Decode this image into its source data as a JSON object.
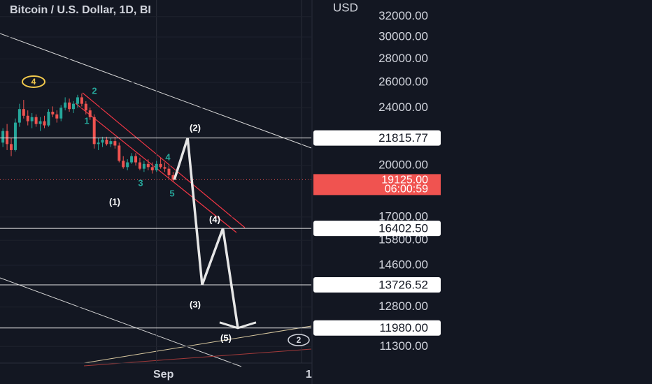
{
  "chart_data": {
    "type": "candlestick",
    "title": "Bitcoin / U.S. Dollar, 1D, BI",
    "y_unit": "USD",
    "log_scale": true,
    "grid": true,
    "ylim": [
      10725,
      33714
    ],
    "yticks": [
      {
        "value": 32000,
        "label": "32000.00"
      },
      {
        "value": 30000,
        "label": "30000.00"
      },
      {
        "value": 28000,
        "label": "28000.00"
      },
      {
        "value": 26000,
        "label": "26000.00"
      },
      {
        "value": 24000,
        "label": "24000.00"
      },
      {
        "value": 20000,
        "label": "20000.00"
      },
      {
        "value": 17000,
        "label": "17000.00"
      },
      {
        "value": 15800,
        "label": "15800.00"
      },
      {
        "value": 14600,
        "label": "14600.00"
      },
      {
        "value": 12800,
        "label": "12800.00"
      },
      {
        "value": 11300,
        "label": "11300.00"
      }
    ],
    "xlim": [
      -0.7,
      74.3
    ],
    "xticks": [
      {
        "value": 37,
        "label": "Sep"
      },
      {
        "value": 72,
        "label": "1"
      }
    ],
    "up_color": "#26a69a",
    "down_color": "#ef5350",
    "x": [
      0,
      1,
      2,
      3,
      4,
      5,
      6,
      7,
      8,
      9,
      10,
      11,
      12,
      13,
      14,
      15,
      16,
      17,
      18,
      19,
      20,
      21,
      22,
      23,
      24,
      25,
      26,
      27,
      28,
      29,
      30,
      31,
      32,
      33,
      34,
      35,
      36,
      37,
      38,
      39,
      40,
      41
    ],
    "open": [
      21500,
      22300,
      21400,
      21000,
      22900,
      23900,
      23400,
      23000,
      23300,
      22800,
      23000,
      22700,
      23700,
      23500,
      23200,
      24000,
      24400,
      23900,
      24300,
      24800,
      24300,
      23800,
      23300,
      21400,
      21500,
      21700,
      21400,
      21600,
      21300,
      20300,
      19900,
      20200,
      20600,
      20200,
      19800,
      20100,
      19900,
      19700,
      20100,
      19900,
      19800,
      19400
    ],
    "high": [
      22500,
      22800,
      21800,
      23200,
      24300,
      24600,
      23800,
      23600,
      23500,
      23300,
      23400,
      23900,
      24100,
      23800,
      24200,
      24800,
      24700,
      24500,
      25000,
      25100,
      24500,
      24000,
      23500,
      21800,
      21900,
      21900,
      21800,
      21900,
      21500,
      20600,
      20400,
      20800,
      20800,
      20500,
      20300,
      20400,
      20200,
      20300,
      20500,
      20200,
      20000,
      19600
    ],
    "low": [
      21200,
      21000,
      20600,
      20900,
      22600,
      23200,
      22700,
      22500,
      22600,
      22300,
      22500,
      22600,
      23300,
      22900,
      23000,
      23800,
      23700,
      23600,
      24000,
      24100,
      23500,
      23100,
      21100,
      21000,
      21200,
      21300,
      21200,
      21100,
      20200,
      19800,
      19700,
      20100,
      20000,
      19700,
      19600,
      19700,
      19500,
      19600,
      19800,
      19600,
      19200,
      19000
    ],
    "close": [
      22300,
      21400,
      21000,
      22900,
      23900,
      23400,
      23000,
      23300,
      22800,
      23000,
      22700,
      23700,
      23500,
      23200,
      24000,
      24400,
      23900,
      24300,
      24800,
      24300,
      23800,
      23300,
      21400,
      21500,
      21700,
      21400,
      21600,
      21300,
      20300,
      19900,
      20200,
      20600,
      20200,
      19800,
      20100,
      19900,
      19700,
      20100,
      19900,
      19800,
      19400,
      19125
    ],
    "price_lines": [
      {
        "value": 21815.77,
        "label": "21815.77"
      },
      {
        "value": 16402.5,
        "label": "16402.50"
      },
      {
        "value": 13726.52,
        "label": "13726.52"
      },
      {
        "value": 11980,
        "label": "11980.00"
      }
    ],
    "current_price": {
      "value": 19125,
      "label": "19125.00",
      "countdown": "06:00:59",
      "color": "#f05350"
    },
    "wave": {
      "color": "#e6e6e6",
      "x": [
        41.3,
        44.5,
        48,
        53,
        56.6
      ],
      "values": [
        19125,
        21815.77,
        13726.52,
        16402.5,
        11980
      ]
    },
    "annotations": [
      "(1)",
      "(2)",
      "(3)",
      "(4)",
      "(5)",
      "1",
      "2",
      "3",
      "4",
      "5",
      "4",
      "2"
    ]
  }
}
